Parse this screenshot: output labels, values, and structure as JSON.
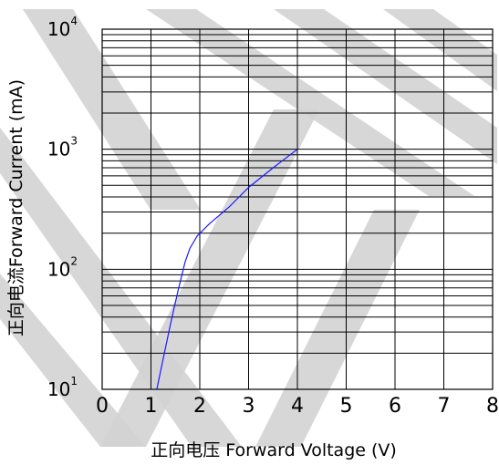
{
  "chart_data": {
    "type": "line",
    "title": "",
    "xlabel": "正向电压 Forward Voltage (V)",
    "ylabel": "正向电流Forward Current (mA)",
    "x_ticks": [
      "0",
      "1",
      "2",
      "3",
      "4",
      "5",
      "6",
      "7",
      "8"
    ],
    "y_ticks": [
      {
        "base": "10",
        "exp": "1"
      },
      {
        "base": "10",
        "exp": "2"
      },
      {
        "base": "10",
        "exp": "3"
      },
      {
        "base": "10",
        "exp": "4"
      }
    ],
    "xlim": [
      0,
      8
    ],
    "ylim": [
      10,
      10000
    ],
    "y_scale": "log",
    "grid": true,
    "series": [
      {
        "color": "#1a1aff",
        "x": [
          1.12,
          1.25,
          1.4,
          1.55,
          1.7,
          1.8,
          1.95,
          2.2,
          2.6,
          3.0,
          3.5,
          4.0
        ],
        "y": [
          10,
          18,
          35,
          65,
          115,
          150,
          190,
          240,
          330,
          480,
          700,
          1000
        ]
      }
    ]
  },
  "watermark": {
    "color": "#d3d3d3"
  }
}
